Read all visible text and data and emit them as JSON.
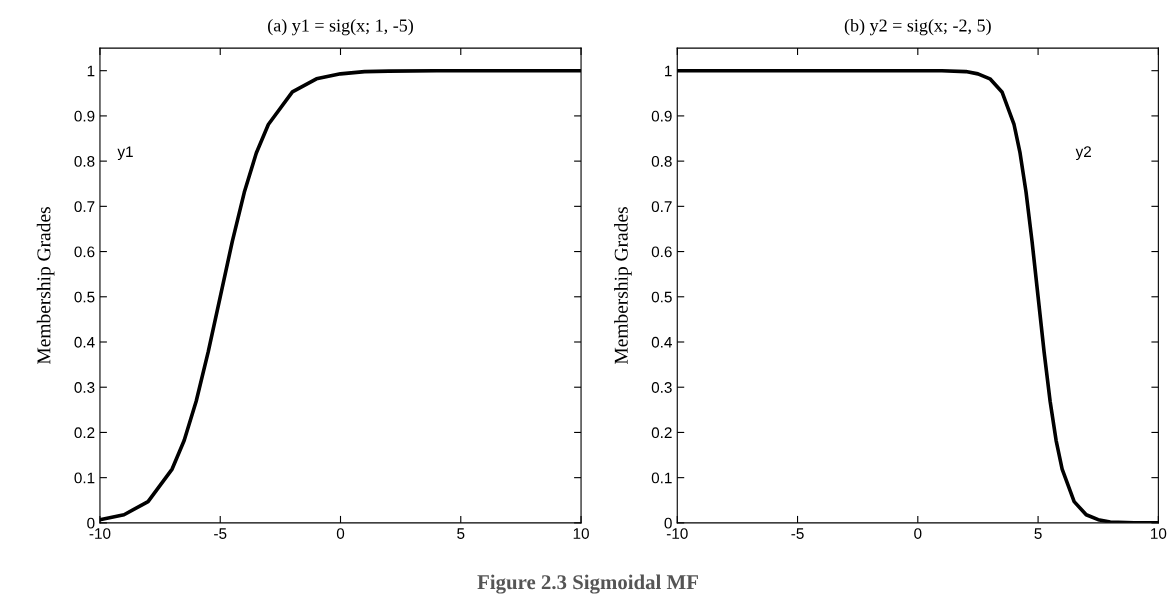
{
  "chart_data": [
    {
      "type": "line",
      "title": "(a) y1 = sig(x; 1, -5)",
      "ylabel": "Membership Grades",
      "xlim": [
        -10,
        10
      ],
      "ylim": [
        0,
        1.05
      ],
      "xticks": [
        -10,
        -5,
        0,
        5,
        10
      ],
      "yticks": [
        0,
        0.1,
        0.2,
        0.3,
        0.4,
        0.5,
        0.6,
        0.7,
        0.8,
        0.9,
        1
      ],
      "grid": false,
      "legend": false,
      "marker": "none",
      "line_style": "solid",
      "series": [
        {
          "name": "y1",
          "color": "#000000",
          "x": [
            -10,
            -9,
            -8,
            -7,
            -6.5,
            -6,
            -5.5,
            -5,
            -4.5,
            -4,
            -3.5,
            -3,
            -2,
            -1,
            0,
            1,
            2,
            4,
            6,
            8,
            10
          ],
          "values": [
            0.007,
            0.018,
            0.047,
            0.119,
            0.182,
            0.269,
            0.378,
            0.5,
            0.622,
            0.731,
            0.818,
            0.881,
            0.953,
            0.982,
            0.993,
            0.998,
            0.999,
            1,
            1,
            1,
            1
          ]
        }
      ],
      "annotations": [
        "Figure 2.3 Sigmoidal MF"
      ]
    },
    {
      "type": "line",
      "title": "(b) y2 = sig(x; -2, 5)",
      "ylabel": "Membership Grades",
      "xlim": [
        -10,
        10
      ],
      "ylim": [
        0,
        1.05
      ],
      "xticks": [
        -10,
        -5,
        0,
        5,
        10
      ],
      "yticks": [
        0,
        0.1,
        0.2,
        0.3,
        0.4,
        0.5,
        0.6,
        0.7,
        0.8,
        0.9,
        1
      ],
      "grid": false,
      "legend": false,
      "marker": "none",
      "line_style": "solid",
      "series": [
        {
          "name": "y2",
          "color": "#000000",
          "x": [
            -10,
            -5,
            0,
            1,
            2,
            2.5,
            3,
            3.5,
            4,
            4.25,
            4.5,
            4.75,
            5,
            5.25,
            5.5,
            5.75,
            6,
            6.5,
            7,
            7.5,
            8,
            9,
            10
          ],
          "values": [
            1,
            1,
            1,
            1,
            0.998,
            0.993,
            0.982,
            0.953,
            0.881,
            0.818,
            0.731,
            0.622,
            0.5,
            0.378,
            0.269,
            0.182,
            0.119,
            0.047,
            0.018,
            0.007,
            0.002,
            0,
            0
          ]
        }
      ]
    }
  ]
}
